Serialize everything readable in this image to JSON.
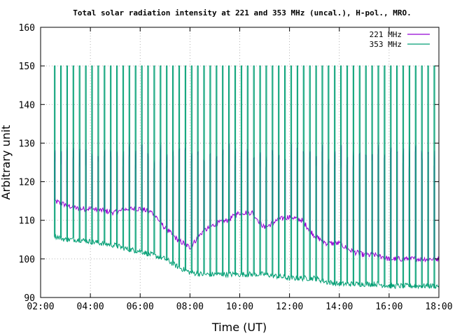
{
  "chart_data": {
    "type": "line",
    "title": "Total solar radiation intensity at 221 and 353 MHz (uncal.), H-pol., MRO.",
    "xlabel": "Time (UT)",
    "ylabel": "Arbitrary unit",
    "xlim": [
      "02:00",
      "18:00"
    ],
    "ylim": [
      90,
      160
    ],
    "xticks": [
      "02:00",
      "04:00",
      "06:00",
      "08:00",
      "10:00",
      "12:00",
      "14:00",
      "16:00",
      "18:00"
    ],
    "yticks": [
      "90",
      "100",
      "110",
      "120",
      "130",
      "140",
      "150",
      "160"
    ],
    "grid": true,
    "legend_position": "top-right",
    "calibration_spike_peak": 150,
    "series": [
      {
        "name": "221 MHz",
        "color": "#9400d3",
        "x": [
          "02:33",
          "03:00",
          "03:30",
          "04:00",
          "04:30",
          "05:00",
          "05:30",
          "06:00",
          "06:30",
          "07:00",
          "07:30",
          "08:00",
          "08:30",
          "09:00",
          "09:30",
          "10:00",
          "10:30",
          "11:00",
          "11:30",
          "12:00",
          "12:30",
          "13:00",
          "13:30",
          "14:00",
          "14:30",
          "15:00",
          "15:30",
          "16:00",
          "16:30",
          "17:00",
          "17:30",
          "18:00"
        ],
        "values": [
          115,
          114,
          113,
          113,
          112.5,
          112,
          113,
          113,
          112,
          108,
          105,
          103,
          107,
          109,
          110,
          112,
          112,
          108,
          110,
          111,
          110,
          106,
          104,
          104,
          102,
          101,
          101,
          100,
          100,
          100,
          100,
          100
        ]
      },
      {
        "name": "353 MHz",
        "color": "#009e73",
        "x": [
          "02:33",
          "03:00",
          "03:30",
          "04:00",
          "04:30",
          "05:00",
          "05:30",
          "06:00",
          "06:30",
          "07:00",
          "07:30",
          "08:00",
          "08:30",
          "09:00",
          "09:30",
          "10:00",
          "10:30",
          "11:00",
          "11:30",
          "12:00",
          "12:30",
          "13:00",
          "13:30",
          "14:00",
          "14:30",
          "15:00",
          "15:30",
          "16:00",
          "16:30",
          "17:00",
          "17:30",
          "18:00"
        ],
        "values": [
          106,
          105,
          105,
          104.5,
          104,
          103.5,
          102.5,
          102,
          101,
          100,
          98,
          96.5,
          96,
          96,
          96,
          96,
          96,
          96,
          95.5,
          95,
          95,
          95,
          94,
          93.5,
          93.5,
          93.5,
          93.5,
          93,
          93,
          93,
          93,
          93
        ]
      }
    ]
  }
}
